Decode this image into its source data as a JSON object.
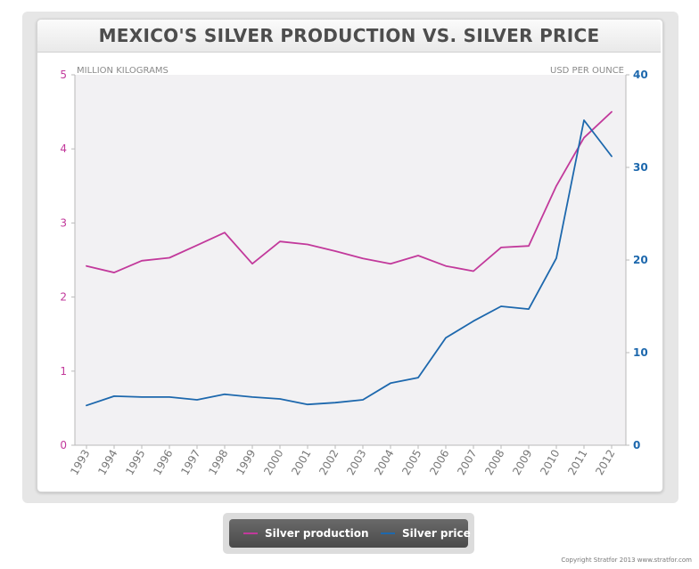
{
  "chart_data": {
    "type": "line",
    "title": "MEXICO'S SILVER PRODUCTION VS. SILVER PRICE",
    "categories": [
      "1993",
      "1994",
      "1995",
      "1996",
      "1997",
      "1998",
      "1999",
      "2000",
      "2001",
      "2002",
      "2003",
      "2004",
      "2005",
      "2006",
      "2007",
      "2008",
      "2009",
      "2010",
      "2011",
      "2012"
    ],
    "left_axis": {
      "label": "MILLION KILOGRAMS",
      "range": [
        0,
        5
      ],
      "ticks": [
        "0",
        "1",
        "2",
        "3",
        "4",
        "5"
      ],
      "color": "#c2399b"
    },
    "right_axis": {
      "label": "USD PER OUNCE",
      "range": [
        0,
        40
      ],
      "ticks": [
        "0",
        "10",
        "20",
        "30",
        "40"
      ],
      "color": "#1d68ad"
    },
    "series": [
      {
        "name": "Silver production",
        "axis": "left",
        "color": "#c2399b",
        "values": [
          2.42,
          2.33,
          2.49,
          2.53,
          2.7,
          2.87,
          2.45,
          2.75,
          2.71,
          2.62,
          2.52,
          2.45,
          2.56,
          2.42,
          2.35,
          2.67,
          2.69,
          3.5,
          4.15,
          4.5
        ]
      },
      {
        "name": "Silver price",
        "axis": "right",
        "color": "#1d68ad",
        "values": [
          4.3,
          5.3,
          5.2,
          5.2,
          4.9,
          5.5,
          5.2,
          5.0,
          4.4,
          4.6,
          4.9,
          6.7,
          7.3,
          11.6,
          13.4,
          15.0,
          14.7,
          20.2,
          35.1,
          31.2
        ]
      }
    ],
    "grid": false,
    "legend_position": "bottom-center"
  },
  "footer": {
    "copyright": "Copyright Stratfor 2013   www.stratfor.com"
  }
}
